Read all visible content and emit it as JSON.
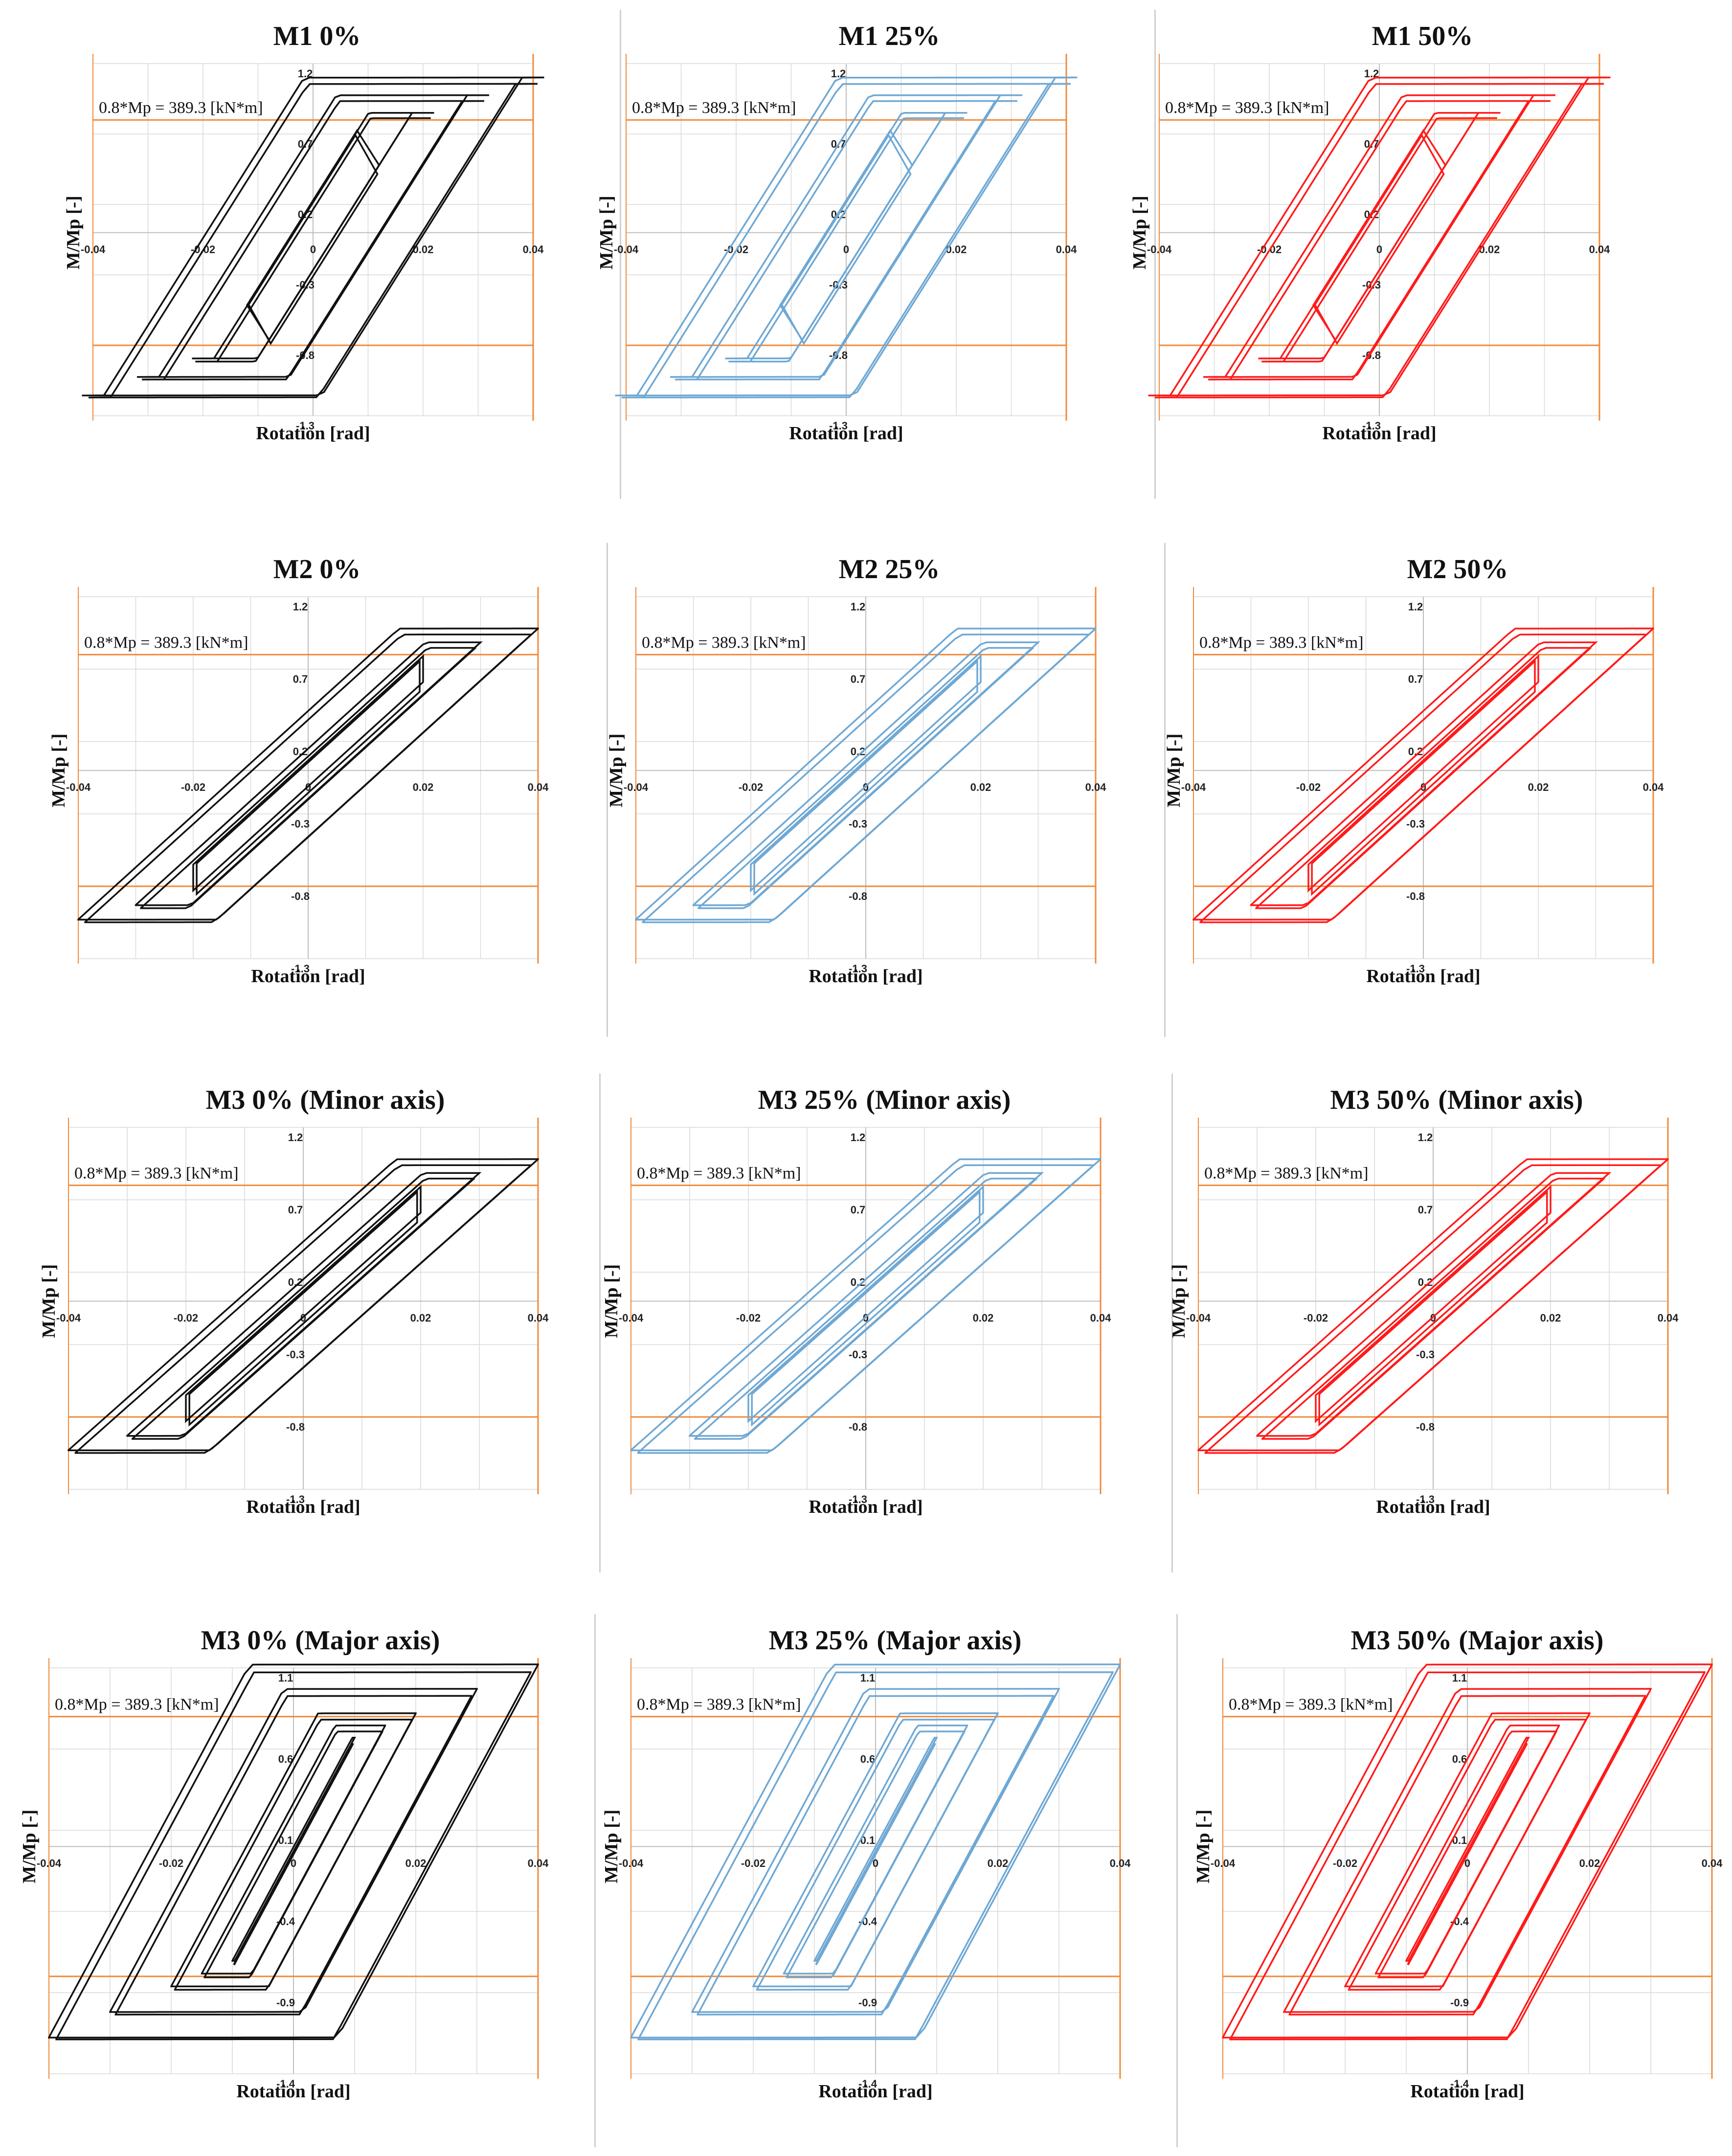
{
  "colors": {
    "series_black": "#111111",
    "series_blue": "#6fa8d4",
    "series_red": "#ff1a1a",
    "reference_orange": "#f08a3a",
    "grid": "#d9d9d9"
  },
  "shared": {
    "xlabel": "Rotation [rad]",
    "ylabel": "M/Mp [-]",
    "ref_label": "0.8*Mp = 389.3 [kN*m]",
    "x_ticks": [
      "-0.04",
      "-0.02",
      "0",
      "0.02",
      "0.04"
    ],
    "y_ticks_set_a": [
      "1.2",
      "0.7",
      "0.2",
      "-0.3",
      "-0.8",
      "-1.3"
    ],
    "y_ticks_set_b": [
      "1.1",
      "0.6",
      "0.1",
      "-0.4",
      "-0.9",
      "-1.4"
    ]
  },
  "chart_data": [
    {
      "id": "m1-0",
      "type": "line",
      "title": "M1 0%",
      "color_key": "series_black",
      "style": "m1",
      "xlim": [
        -0.04,
        0.04
      ],
      "ylim": [
        -1.3,
        1.2
      ],
      "y_ticks": "a",
      "ref_lines": [
        0.8,
        -0.8
      ],
      "loop_amplitudes": [
        0.01,
        0.02,
        0.03,
        0.04
      ],
      "xlabel": "Rotation [rad]",
      "ylabel": "M/Mp [-]"
    },
    {
      "id": "m1-25",
      "type": "line",
      "title": "M1 25%",
      "color_key": "series_blue",
      "style": "m1",
      "xlim": [
        -0.04,
        0.04
      ],
      "ylim": [
        -1.3,
        1.2
      ],
      "y_ticks": "a",
      "ref_lines": [
        0.8,
        -0.8
      ],
      "loop_amplitudes": [
        0.01,
        0.02,
        0.03,
        0.04
      ],
      "xlabel": "Rotation [rad]",
      "ylabel": "M/Mp [-]"
    },
    {
      "id": "m1-50",
      "type": "line",
      "title": "M1 50%",
      "color_key": "series_red",
      "style": "m1",
      "xlim": [
        -0.04,
        0.04
      ],
      "ylim": [
        -1.3,
        1.2
      ],
      "y_ticks": "a",
      "ref_lines": [
        0.8,
        -0.8
      ],
      "loop_amplitudes": [
        0.01,
        0.02,
        0.03,
        0.04
      ],
      "xlabel": "Rotation [rad]",
      "ylabel": "M/Mp [-]"
    },
    {
      "id": "m2-0",
      "type": "line",
      "title": "M2 0%",
      "color_key": "series_black",
      "style": "m2",
      "xlim": [
        -0.04,
        0.04
      ],
      "ylim": [
        -1.3,
        1.2
      ],
      "y_ticks": "a",
      "ref_lines": [
        0.8,
        -0.8
      ],
      "loop_amplitudes": [
        0.02,
        0.03,
        0.04
      ],
      "xlabel": "Rotation [rad]",
      "ylabel": "M/Mp [-]"
    },
    {
      "id": "m2-25",
      "type": "line",
      "title": "M2 25%",
      "color_key": "series_blue",
      "style": "m2",
      "xlim": [
        -0.04,
        0.04
      ],
      "ylim": [
        -1.3,
        1.2
      ],
      "y_ticks": "a",
      "ref_lines": [
        0.8,
        -0.8
      ],
      "loop_amplitudes": [
        0.02,
        0.03,
        0.04
      ],
      "xlabel": "Rotation [rad]",
      "ylabel": "M/Mp [-]"
    },
    {
      "id": "m2-50",
      "type": "line",
      "title": "M2 50%",
      "color_key": "series_red",
      "style": "m2",
      "xlim": [
        -0.04,
        0.04
      ],
      "ylim": [
        -1.3,
        1.2
      ],
      "y_ticks": "a",
      "ref_lines": [
        0.8,
        -0.8
      ],
      "loop_amplitudes": [
        0.02,
        0.03,
        0.04
      ],
      "xlabel": "Rotation [rad]",
      "ylabel": "M/Mp [-]"
    },
    {
      "id": "m3min-0",
      "type": "line",
      "title": "M3 0% (Minor axis)",
      "color_key": "series_black",
      "style": "m2",
      "xlim": [
        -0.04,
        0.04
      ],
      "ylim": [
        -1.3,
        1.2
      ],
      "y_ticks": "a",
      "ref_lines": [
        0.8,
        -0.8
      ],
      "loop_amplitudes": [
        0.02,
        0.03,
        0.04
      ],
      "xlabel": "Rotation [rad]",
      "ylabel": "M/Mp [-]"
    },
    {
      "id": "m3min-25",
      "type": "line",
      "title": "M3 25% (Minor axis)",
      "color_key": "series_blue",
      "style": "m2",
      "xlim": [
        -0.04,
        0.04
      ],
      "ylim": [
        -1.3,
        1.2
      ],
      "y_ticks": "a",
      "ref_lines": [
        0.8,
        -0.8
      ],
      "loop_amplitudes": [
        0.02,
        0.03,
        0.04
      ],
      "xlabel": "Rotation [rad]",
      "ylabel": "M/Mp [-]"
    },
    {
      "id": "m3min-50",
      "type": "line",
      "title": "M3 50% (Minor axis)",
      "color_key": "series_red",
      "style": "m2",
      "xlim": [
        -0.04,
        0.04
      ],
      "ylim": [
        -1.3,
        1.2
      ],
      "y_ticks": "a",
      "ref_lines": [
        0.8,
        -0.8
      ],
      "loop_amplitudes": [
        0.02,
        0.03,
        0.04
      ],
      "xlabel": "Rotation [rad]",
      "ylabel": "M/Mp [-]"
    },
    {
      "id": "m3maj-0",
      "type": "line",
      "title": "M3 0% (Major axis)",
      "color_key": "series_black",
      "style": "m3maj",
      "xlim": [
        -0.04,
        0.04
      ],
      "ylim": [
        -1.4,
        1.1
      ],
      "y_ticks": "b",
      "ref_lines": [
        0.8,
        -0.8
      ],
      "loop_amplitudes": [
        0.01,
        0.015,
        0.02,
        0.03,
        0.04
      ],
      "xlabel": "Rotation [rad]",
      "ylabel": "M/Mp [-]"
    },
    {
      "id": "m3maj-25",
      "type": "line",
      "title": "M3 25% (Major axis)",
      "color_key": "series_blue",
      "style": "m3maj",
      "xlim": [
        -0.04,
        0.04
      ],
      "ylim": [
        -1.4,
        1.1
      ],
      "y_ticks": "b",
      "ref_lines": [
        0.8,
        -0.8
      ],
      "loop_amplitudes": [
        0.01,
        0.015,
        0.02,
        0.03,
        0.04
      ],
      "xlabel": "Rotation [rad]",
      "ylabel": "M/Mp [-]"
    },
    {
      "id": "m3maj-50",
      "type": "line",
      "title": "M3 50% (Major axis)",
      "color_key": "series_red",
      "style": "m3maj",
      "xlim": [
        -0.04,
        0.04
      ],
      "ylim": [
        -1.4,
        1.1
      ],
      "y_ticks": "b",
      "ref_lines": [
        0.8,
        -0.8
      ],
      "loop_amplitudes": [
        0.01,
        0.015,
        0.02,
        0.03,
        0.04
      ],
      "xlabel": "Rotation [rad]",
      "ylabel": "M/Mp [-]"
    }
  ]
}
